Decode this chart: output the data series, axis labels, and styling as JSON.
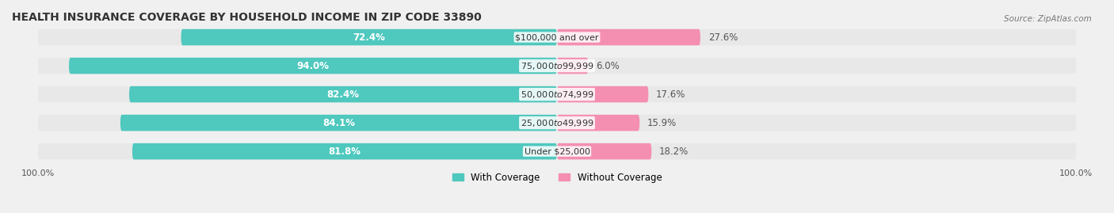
{
  "title": "HEALTH INSURANCE COVERAGE BY HOUSEHOLD INCOME IN ZIP CODE 33890",
  "source": "Source: ZipAtlas.com",
  "categories": [
    "Under $25,000",
    "$25,000 to $49,999",
    "$50,000 to $74,999",
    "$75,000 to $99,999",
    "$100,000 and over"
  ],
  "with_coverage": [
    81.8,
    84.1,
    82.4,
    94.0,
    72.4
  ],
  "without_coverage": [
    18.2,
    15.9,
    17.6,
    6.0,
    27.6
  ],
  "color_with": "#4FC8BE",
  "color_without": "#F48FB1",
  "bg_color": "#f0f0f0",
  "bar_bg": "#e8e8e8",
  "title_fontsize": 10,
  "label_fontsize": 8.5,
  "tick_fontsize": 8,
  "bar_height": 0.55,
  "legend_with": "With Coverage",
  "legend_without": "Without Coverage"
}
